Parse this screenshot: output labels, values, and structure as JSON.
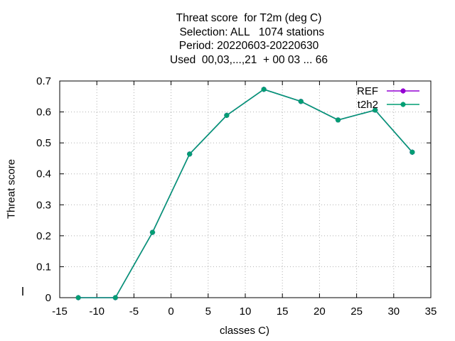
{
  "chart_data": {
    "type": "line",
    "title_lines": [
      "Threat score  for T2m (deg C)",
      "  Selection: ALL   1074 stations",
      "Period: 20220603-20220630",
      "Used  00,03,...,21  + 00 03 ... 66"
    ],
    "xlabel": "classes C)",
    "ylabel": "Threat score",
    "xlim": [
      -15,
      35
    ],
    "ylim": [
      0,
      0.7
    ],
    "xticks": [
      "-15",
      "-10",
      "-5",
      "0",
      "5",
      "10",
      "15",
      "20",
      "25",
      "30",
      "35"
    ],
    "yticks": [
      "0",
      "0.1",
      "0.2",
      "0.3",
      "0.4",
      "0.5",
      "0.6",
      "0.7"
    ],
    "grid": true,
    "legend_position": "top-right",
    "x": [
      -12.5,
      -7.5,
      -2.5,
      2.5,
      7.5,
      12.5,
      17.5,
      22.5,
      27.5,
      32.5
    ],
    "series": [
      {
        "name": "REF",
        "color": "#9400d3",
        "values": [
          0,
          0,
          0.211,
          0.464,
          0.589,
          0.673,
          0.634,
          0.574,
          0.606,
          0.47
        ]
      },
      {
        "name": "t2h2",
        "color": "#009e73",
        "values": [
          0,
          0,
          0.211,
          0.464,
          0.589,
          0.673,
          0.634,
          0.574,
          0.606,
          0.47
        ]
      }
    ]
  }
}
